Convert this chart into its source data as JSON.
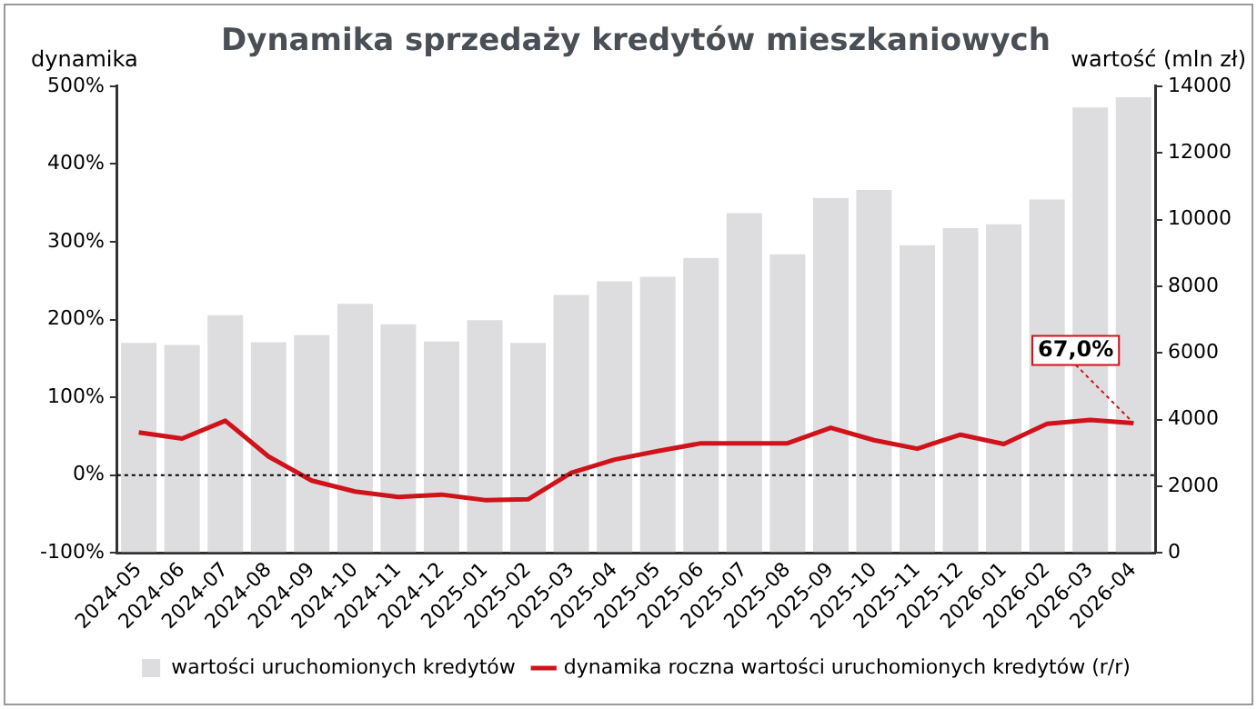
{
  "chart_data": {
    "type": "bar",
    "title": "Dynamika sprzedaży kredytów mieszkaniowych",
    "ylabel": "dynamika",
    "y2label": "wartość (mln zł)",
    "categories": [
      "2024-05",
      "2024-06",
      "2024-07",
      "2024-08",
      "2024-09",
      "2024-10",
      "2024-11",
      "2024-12",
      "2025-01",
      "2025-02",
      "2025-03",
      "2025-04",
      "2025-05",
      "2025-06",
      "2025-07",
      "2025-08",
      "2025-09",
      "2025-10",
      "2025-11",
      "2025-12",
      "2026-01",
      "2026-02",
      "2026-03",
      "2026-04"
    ],
    "series": [
      {
        "name": "wartości uruchomionych kredytów",
        "axis": "y2",
        "color": "#dddde0",
        "values": [
          6300,
          6240,
          7130,
          6320,
          6530,
          7470,
          6860,
          6340,
          6980,
          6300,
          7740,
          8150,
          8280,
          8850,
          10190,
          8960,
          10650,
          10890,
          9230,
          9740,
          9860,
          10600,
          13360,
          13670
        ]
      },
      {
        "name": "dynamika roczna wartości uruchomionych kredytów (r/r)",
        "type": "line",
        "axis": "y",
        "color": "#d0121b",
        "values": [
          55,
          47,
          70,
          24,
          -7,
          -21,
          -28,
          -25,
          -32,
          -31,
          3,
          20,
          31,
          41,
          41,
          41,
          61,
          45,
          34,
          52,
          40,
          66,
          71,
          67
        ]
      }
    ],
    "ylim": [
      -100,
      500
    ],
    "yticks": [
      {
        "value": -100,
        "label": "-100%"
      },
      {
        "value": 0,
        "label": "0%"
      },
      {
        "value": 100,
        "label": "100%"
      },
      {
        "value": 200,
        "label": "200%"
      },
      {
        "value": 300,
        "label": "300%"
      },
      {
        "value": 400,
        "label": "400%"
      },
      {
        "value": 500,
        "label": "500%"
      }
    ],
    "y2lim": [
      0,
      14000
    ],
    "y2ticks": [
      0,
      2000,
      4000,
      6000,
      8000,
      10000,
      12000,
      14000
    ],
    "ref_lines": [
      {
        "axis": "y",
        "value": 0,
        "color": "#000000",
        "line_style": "dotted"
      }
    ],
    "annotations": [
      {
        "text": "67,0%",
        "x": "2026-04",
        "y": 67
      }
    ],
    "grid": false,
    "legend": "bottom",
    "marker": "none",
    "line_style": "solid"
  }
}
